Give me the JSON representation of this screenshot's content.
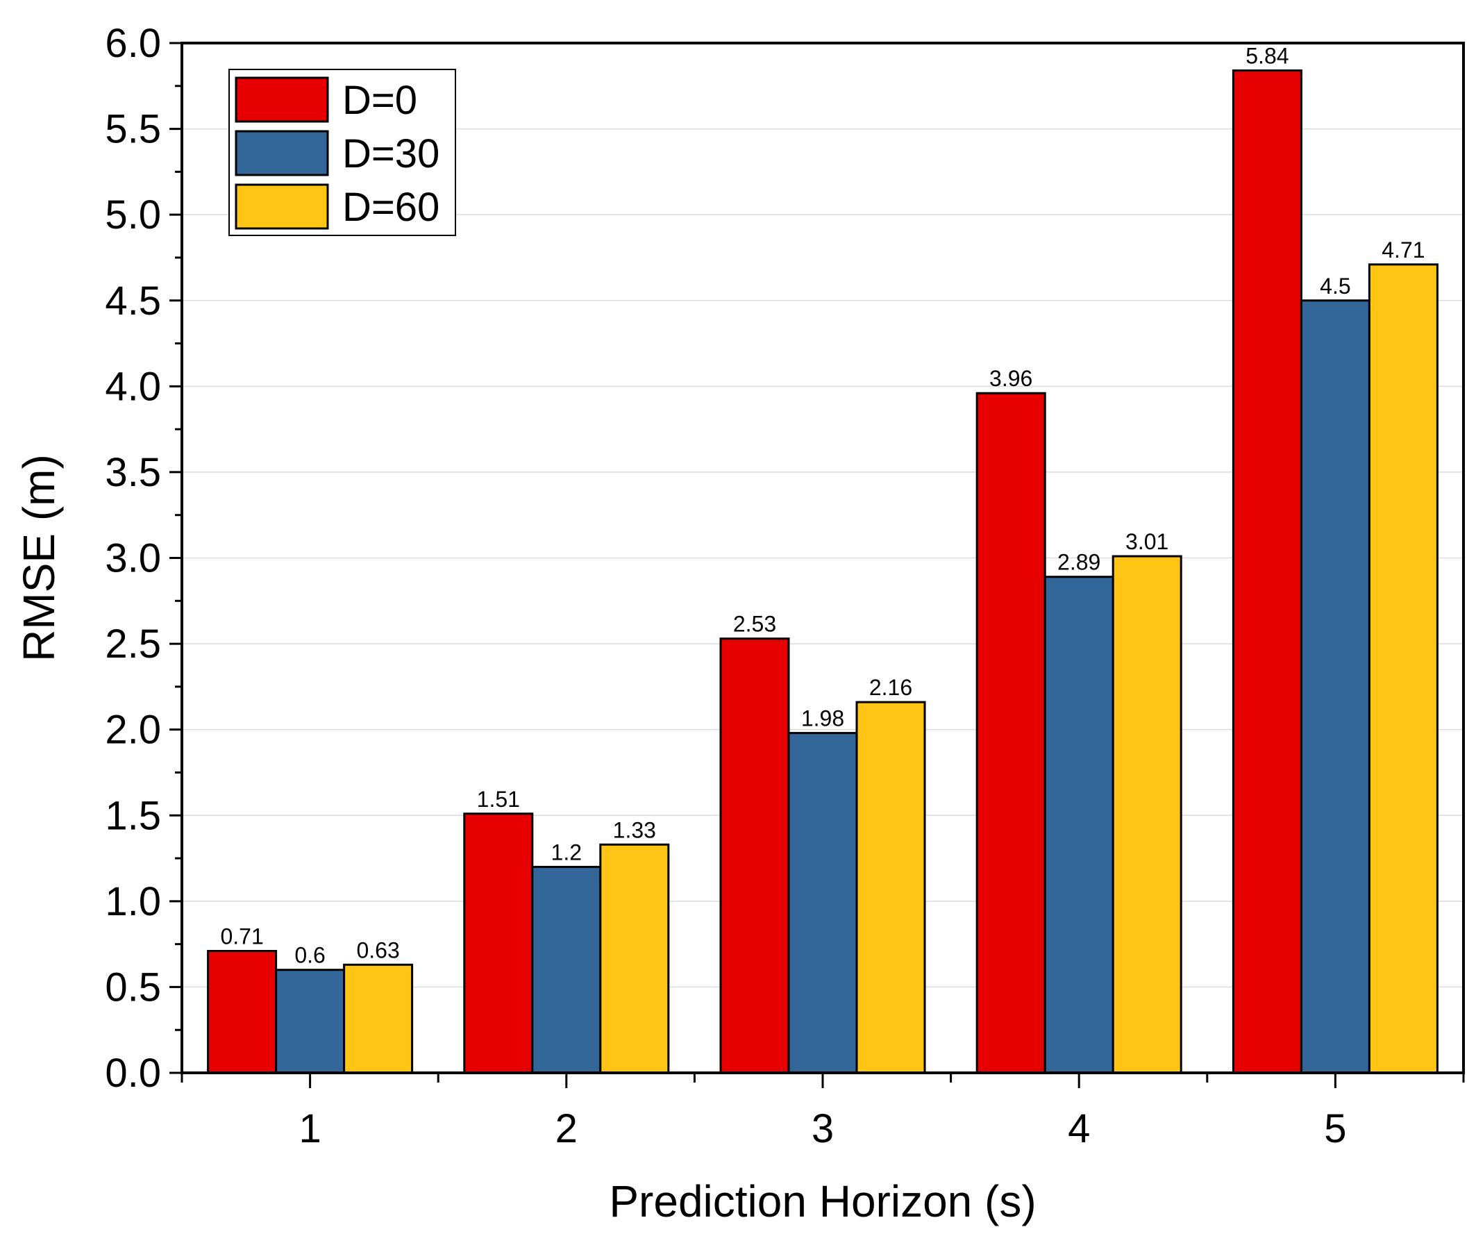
{
  "chart_data": {
    "type": "bar",
    "title": "",
    "xlabel": "Prediction Horizon (s)",
    "ylabel": "RMSE (m)",
    "categories": [
      "1",
      "2",
      "3",
      "4",
      "5"
    ],
    "ylim": [
      0,
      6.0
    ],
    "yticks": [
      "0.0",
      "0.5",
      "1.0",
      "1.5",
      "2.0",
      "2.5",
      "3.0",
      "3.5",
      "4.0",
      "4.5",
      "5.0",
      "5.5",
      "6.0"
    ],
    "grid": true,
    "legend_position": "top-left",
    "series": [
      {
        "name": "D=0",
        "color": "#e60000",
        "values": [
          0.71,
          1.51,
          2.53,
          3.96,
          5.84
        ],
        "labels": [
          "0.71",
          "1.51",
          "2.53",
          "3.96",
          "5.84"
        ]
      },
      {
        "name": "D=30",
        "color": "#336699",
        "values": [
          0.6,
          1.2,
          1.98,
          2.89,
          4.5
        ],
        "labels": [
          "0.6",
          "1.2",
          "1.98",
          "2.89",
          "4.5"
        ]
      },
      {
        "name": "D=60",
        "color": "#ffc414",
        "values": [
          0.63,
          1.33,
          2.16,
          3.01,
          4.71
        ],
        "labels": [
          "0.63",
          "1.33",
          "2.16",
          "3.01",
          "4.71"
        ]
      }
    ]
  }
}
